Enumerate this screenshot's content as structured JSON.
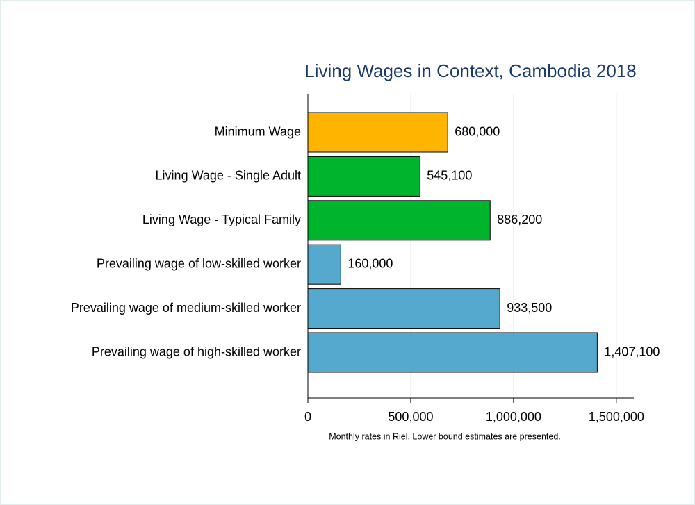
{
  "chart_data": {
    "type": "hbar",
    "title": "Living Wages in Context, Cambodia 2018",
    "note": "Monthly rates in Riel. Lower bound estimates are presented.",
    "categories": [
      "Minimum Wage",
      "Living Wage - Single Adult",
      "Living Wage - Typical Family",
      "Prevailing wage of low-skilled worker",
      "Prevailing wage of medium-skilled worker",
      "Prevailing wage of high-skilled worker"
    ],
    "values": [
      680000,
      545100,
      886200,
      160000,
      933500,
      1407100
    ],
    "value_labels": [
      "680,000",
      "545,100",
      "886,200",
      "160,000",
      "933,500",
      "1,407,100"
    ],
    "colors": [
      "#ffb400",
      "#00b52e",
      "#00b52e",
      "#55a9cf",
      "#55a9cf",
      "#55a9cf"
    ],
    "xlim": [
      0,
      1585000
    ],
    "xticks": [
      0,
      {
        "value": 500000,
        "label": "500,000"
      },
      {
        "value": 1000000,
        "label": "1,000,000"
      },
      {
        "value": 1500000,
        "label": "1,500,000"
      }
    ],
    "grid": true
  }
}
